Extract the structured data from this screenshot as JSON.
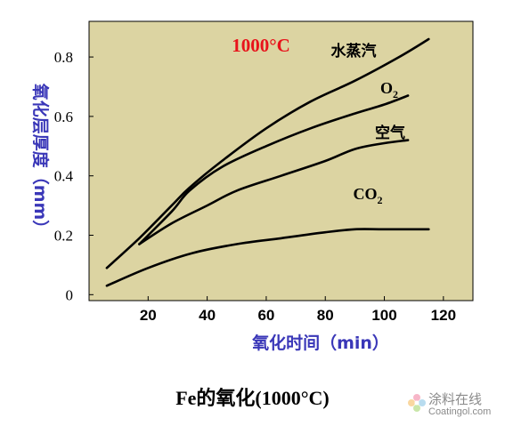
{
  "chart_data": {
    "type": "line",
    "title": "1000°C",
    "xlabel": "氧化时间（min）",
    "ylabel": "氧化层厚度（mm）",
    "xlim": [
      0,
      130
    ],
    "ylim": [
      -0.02,
      0.92
    ],
    "xticks": [
      20,
      40,
      60,
      80,
      100,
      120
    ],
    "yticks": [
      0,
      0.2,
      0.4,
      0.6,
      0.8
    ],
    "xtick_labels": [
      "20",
      "40",
      "60",
      "80",
      "100",
      "120"
    ],
    "ytick_labels": [
      "0",
      "0.2",
      "0.4",
      "0.6",
      "0.8"
    ],
    "grid": false,
    "series": [
      {
        "name": "水蒸汽",
        "label_main": "水蒸汽",
        "label_sub": "",
        "color": "#000000",
        "x": [
          6,
          17,
          28,
          34,
          45,
          60,
          75,
          90,
          105,
          115
        ],
        "y": [
          0.09,
          0.19,
          0.3,
          0.36,
          0.45,
          0.56,
          0.65,
          0.72,
          0.8,
          0.86
        ]
      },
      {
        "name": "O2",
        "label_main": "O",
        "label_sub": "2",
        "color": "#000000",
        "x": [
          17,
          28,
          34,
          45,
          60,
          75,
          90,
          100,
          108
        ],
        "y": [
          0.17,
          0.28,
          0.35,
          0.43,
          0.5,
          0.56,
          0.61,
          0.64,
          0.67
        ]
      },
      {
        "name": "空气",
        "label_main": "空气",
        "label_sub": "",
        "color": "#000000",
        "x": [
          17,
          28,
          40,
          50,
          65,
          80,
          90,
          100,
          108
        ],
        "y": [
          0.17,
          0.24,
          0.3,
          0.35,
          0.4,
          0.45,
          0.49,
          0.51,
          0.52
        ]
      },
      {
        "name": "CO2",
        "label_main": "CO",
        "label_sub": "2",
        "color": "#000000",
        "x": [
          6,
          20,
          35,
          50,
          65,
          80,
          90,
          100,
          115
        ],
        "y": [
          0.03,
          0.09,
          0.14,
          0.17,
          0.19,
          0.21,
          0.22,
          0.22,
          0.22
        ]
      }
    ]
  },
  "colors": {
    "plot_bg": "#dcd4a2",
    "axis": "#000000",
    "title": "#e8131b",
    "axis_label": "#3a37b8",
    "tick": "#000000"
  },
  "caption": "Fe的氧化(1000°C)",
  "watermark": {
    "cn": "涂料在线",
    "en": "Coatingol.com",
    "icon": "flower-logo-icon"
  }
}
